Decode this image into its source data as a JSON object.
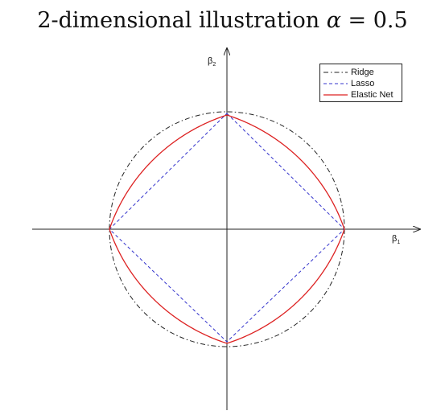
{
  "title": {
    "text": "2-dimensional illustration",
    "alpha_symbol": "α",
    "equals": " = ",
    "alpha_value": "0.5"
  },
  "axes": {
    "x_label": "β",
    "x_sub": "1",
    "y_label": "β",
    "y_sub": "2"
  },
  "legend": {
    "items": [
      {
        "label": "Ridge",
        "color": "#222222",
        "style": "dash-dot"
      },
      {
        "label": "Lasso",
        "color": "#3333cc",
        "style": "dashed"
      },
      {
        "label": "Elastic Net",
        "color": "#dd2222",
        "style": "solid"
      }
    ]
  },
  "chart_data": {
    "type": "line",
    "alpha": 0.5,
    "series": [
      {
        "name": "Ridge",
        "shape": "circle"
      },
      {
        "name": "Lasso",
        "shape": "diamond"
      },
      {
        "name": "Elastic Net",
        "shape": "elastic-net-ball"
      }
    ]
  }
}
